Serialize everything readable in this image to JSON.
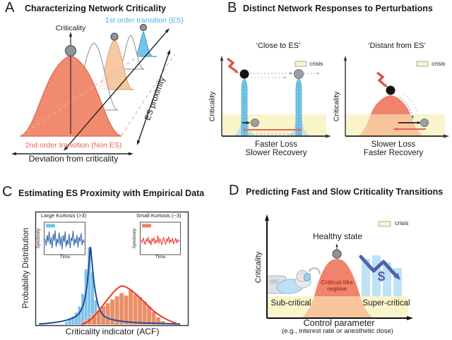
{
  "panel_a": {
    "letter": "A",
    "title": "Characterizing Network Criticality",
    "criticality": "Criticality",
    "first_order": "1st order transition (ES)",
    "second_order": "2nd order transition (Non ES)",
    "x_axis": "Deviation from criticality",
    "diag_axis": "ES proximity"
  },
  "panel_b": {
    "letter": "B",
    "title": "Distinct Network Responses to Perturbations",
    "left": {
      "title": "‘Close to ES’",
      "y_axis": "Criticality",
      "legend": "crisis",
      "caption1": "Faster Loss",
      "caption2": "Slower Recovery"
    },
    "right": {
      "title": "‘Distant from ES’",
      "y_axis": "Criticality",
      "legend": "crisis",
      "caption1": "Slower Loss",
      "caption2": "Faster Recovery"
    }
  },
  "panel_c": {
    "letter": "C",
    "title": "Estimating ES Proximity with Empirical Data",
    "y_axis": "Probability Distribution",
    "x_axis": "Criticality indicator (ACF)",
    "inset_left": {
      "title": "Large Kurtosis (>3)",
      "y_axis": "Synchrony",
      "x_axis": "Time"
    },
    "inset_right": {
      "title": "Small Kurtosis (~3)",
      "y_axis": "Synchrony",
      "x_axis": "Time"
    }
  },
  "panel_d": {
    "letter": "D",
    "title": "Predicting Fast and Slow Criticality Transitions",
    "y_axis": "Criticality",
    "x_axis": "Control parameter",
    "x_axis_sub": "(e.g., interest rate or anesthetic dose)",
    "legend": "crisis",
    "healthy": "Healthy state",
    "regime1": "Critical-like",
    "regime2": "regime",
    "sub_critical": "Sub-critical",
    "super_critical": "Super-critical",
    "dollar": "$"
  },
  "colors": {
    "salmon": "#F18B70",
    "peach": "#F6C9A2",
    "light_orange": "#F8C49C",
    "spike_blue": "#74C6E9",
    "teal_base": "#C2E5DD",
    "crisis_yellow": "#FAF4CB",
    "red_text": "#E85F4F",
    "blue_text": "#3FB4E8",
    "dark_red_text": "#B5341F",
    "finance_blue": "#4E63AC",
    "ball_gray": "#8E959B"
  },
  "chart_data": {
    "type": "histogram",
    "xlabel": "Criticality indicator (ACF)",
    "ylabel": "Probability Distribution",
    "series": [
      {
        "name": "Large Kurtosis (>3)",
        "fill": "#76BDE8",
        "bin_start": 0.19,
        "bin_width": 0.0214,
        "heights": [
          4,
          7,
          11,
          16,
          24,
          40,
          72,
          100,
          68,
          32,
          17,
          10,
          6,
          3
        ]
      },
      {
        "name": "Small Kurtosis (~3)",
        "fill": "#E98960",
        "bin_start": 0.307,
        "bin_width": 0.0302,
        "heights": [
          5,
          9,
          14,
          19,
          24,
          28,
          33,
          37,
          41,
          38,
          45,
          40,
          36,
          30,
          24,
          17,
          10,
          5
        ]
      }
    ],
    "curves": [
      {
        "name": "leptokurtic-fit",
        "color": "#1F4E9B",
        "points": [
          [
            0.02,
            1
          ],
          [
            0.12,
            3
          ],
          [
            0.2,
            6
          ],
          [
            0.27,
            12
          ],
          [
            0.31,
            25
          ],
          [
            0.335,
            50
          ],
          [
            0.35,
            82
          ],
          [
            0.358,
            100
          ],
          [
            0.368,
            82
          ],
          [
            0.385,
            50
          ],
          [
            0.41,
            25
          ],
          [
            0.44,
            13
          ],
          [
            0.48,
            8
          ],
          [
            0.55,
            5
          ],
          [
            0.65,
            3
          ],
          [
            0.78,
            2
          ],
          [
            0.95,
            1
          ]
        ]
      },
      {
        "name": "mesokurtic-fit",
        "color": "#E8392E",
        "points": [
          [
            0.3,
            0
          ],
          [
            0.36,
            7
          ],
          [
            0.42,
            20
          ],
          [
            0.48,
            35
          ],
          [
            0.53,
            46
          ],
          [
            0.565,
            50
          ],
          [
            0.6,
            48
          ],
          [
            0.65,
            41
          ],
          [
            0.71,
            30
          ],
          [
            0.78,
            17
          ],
          [
            0.86,
            7
          ],
          [
            0.935,
            1
          ]
        ]
      }
    ],
    "insets": [
      {
        "name": "large-kurtosis-series",
        "color": "#2B5FA8",
        "values": [
          55,
          25,
          70,
          40,
          85,
          30,
          60,
          15,
          75,
          45,
          90,
          20,
          55,
          35,
          80,
          25,
          65,
          10,
          70,
          40,
          85,
          20,
          50,
          30,
          75,
          15,
          60,
          45,
          88,
          25,
          55,
          35,
          70,
          18,
          62,
          42,
          78,
          28,
          52,
          38
        ]
      },
      {
        "name": "small-kurtosis-series",
        "color": "#E8392E",
        "values": [
          50,
          38,
          58,
          42,
          30,
          52,
          44,
          62,
          36,
          50,
          28,
          55,
          45,
          60,
          33,
          48,
          40,
          68,
          35,
          55,
          46,
          28,
          50,
          60,
          40,
          32,
          54,
          44,
          64,
          36,
          50,
          42,
          58,
          32,
          46,
          55,
          36,
          52,
          42,
          48
        ]
      }
    ]
  }
}
